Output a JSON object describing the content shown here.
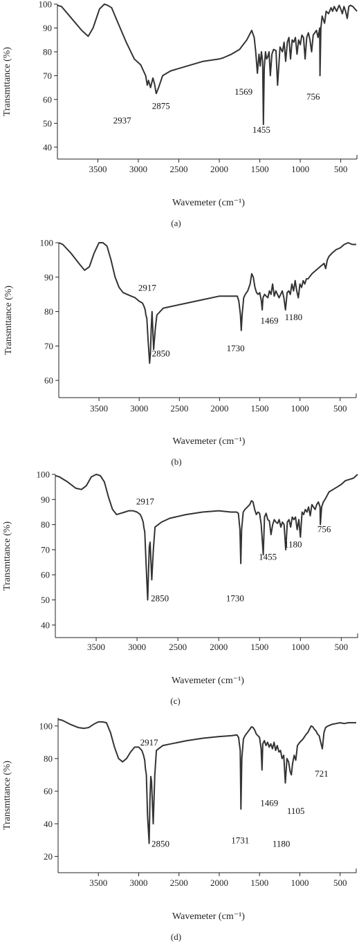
{
  "chart_data": [
    {
      "type": "line",
      "panel_label": "(a)",
      "xlabel": "Wavemeter (cm⁻¹)",
      "ylabel": "Transmttance (%)",
      "xlim": [
        4000,
        300
      ],
      "ylim": [
        35,
        100
      ],
      "xticks": [
        3500,
        3000,
        2500,
        2000,
        1500,
        1000,
        500
      ],
      "yticks": [
        40,
        50,
        60,
        70,
        80,
        90,
        100
      ],
      "grid": false,
      "annotations": [
        {
          "text": "2937",
          "x": 3200,
          "y": 50
        },
        {
          "text": "2875",
          "x": 2720,
          "y": 56
        },
        {
          "text": "1569",
          "x": 1700,
          "y": 62
        },
        {
          "text": "1455",
          "x": 1480,
          "y": 46
        },
        {
          "text": "756",
          "x": 840,
          "y": 60
        }
      ],
      "series": [
        {
          "x": [
            4000,
            3950,
            3850,
            3700,
            3620,
            3560,
            3480,
            3420,
            3380,
            3330,
            3250,
            3150,
            3050,
            2970,
            2937,
            2910,
            2890,
            2875,
            2850,
            2820,
            2800,
            2780,
            2750,
            2700,
            2600,
            2400,
            2200,
            2000,
            1950,
            1850,
            1750,
            1660,
            1600,
            1569,
            1550,
            1530,
            1510,
            1495,
            1480,
            1465,
            1455,
            1445,
            1430,
            1415,
            1400,
            1385,
            1370,
            1350,
            1330,
            1300,
            1280,
            1250,
            1220,
            1200,
            1180,
            1160,
            1140,
            1120,
            1100,
            1080,
            1060,
            1040,
            1020,
            1000,
            980,
            960,
            940,
            920,
            900,
            880,
            860,
            840,
            820,
            800,
            780,
            760,
            756,
            745,
            730,
            700,
            680,
            650,
            620,
            600,
            580,
            550,
            520,
            500,
            480,
            460,
            440,
            420,
            400,
            380,
            350,
            300
          ],
          "y": [
            99.5,
            99,
            95,
            89,
            86.5,
            90,
            98,
            100,
            99.5,
            98.5,
            92,
            84,
            77,
            74.5,
            72,
            70,
            66,
            68,
            65,
            69,
            66.5,
            62.5,
            65,
            70,
            72,
            74,
            76,
            77,
            77.5,
            79,
            81,
            85,
            89,
            86,
            80,
            71,
            79,
            74,
            80,
            76,
            49.5,
            73,
            80,
            77,
            78,
            80,
            70,
            79,
            81,
            80.5,
            66,
            82,
            80,
            84,
            76,
            84,
            86,
            77,
            85,
            84,
            86,
            79,
            85,
            83,
            87,
            86,
            77,
            86,
            88,
            85,
            80,
            87,
            88,
            89,
            86,
            90,
            70,
            90,
            95,
            92,
            97,
            96,
            98.5,
            97,
            99,
            97,
            99.5,
            98,
            96,
            99,
            97,
            94,
            99,
            99.5,
            99,
            97
          ]
        }
      ]
    },
    {
      "type": "line",
      "panel_label": "(b)",
      "xlabel": "Wavemeter (cm⁻¹)",
      "ylabel": "Transmttance (%)",
      "xlim": [
        4000,
        300
      ],
      "ylim": [
        55,
        100
      ],
      "xticks": [
        3500,
        3000,
        2500,
        2000,
        1500,
        1000,
        500
      ],
      "yticks": [
        60,
        70,
        80,
        90,
        100
      ],
      "grid": false,
      "annotations": [
        {
          "text": "2917",
          "x": 2900,
          "y": 86
        },
        {
          "text": "2850",
          "x": 2730,
          "y": 67
        },
        {
          "text": "1730",
          "x": 1800,
          "y": 68.5
        },
        {
          "text": "1469",
          "x": 1380,
          "y": 76.5
        },
        {
          "text": "1180",
          "x": 1080,
          "y": 77.5
        }
      ],
      "series": [
        {
          "x": [
            4000,
            3950,
            3850,
            3750,
            3680,
            3620,
            3560,
            3500,
            3450,
            3400,
            3350,
            3300,
            3250,
            3200,
            3150,
            3100,
            3050,
            3000,
            2960,
            2940,
            2925,
            2917,
            2905,
            2890,
            2870,
            2860,
            2850,
            2840,
            2820,
            2800,
            2780,
            2700,
            2600,
            2400,
            2200,
            2000,
            1850,
            1780,
            1760,
            1740,
            1730,
            1720,
            1700,
            1680,
            1650,
            1620,
            1600,
            1580,
            1560,
            1540,
            1520,
            1500,
            1480,
            1469,
            1460,
            1440,
            1420,
            1400,
            1380,
            1360,
            1340,
            1320,
            1300,
            1280,
            1260,
            1240,
            1220,
            1200,
            1180,
            1160,
            1140,
            1120,
            1100,
            1080,
            1060,
            1040,
            1020,
            1000,
            980,
            960,
            940,
            920,
            900,
            850,
            800,
            750,
            700,
            680,
            660,
            640,
            620,
            600,
            550,
            500,
            450,
            400,
            350,
            300
          ],
          "y": [
            100,
            99.5,
            97,
            94,
            92,
            93,
            97,
            100,
            100.5,
            99,
            95,
            90,
            87,
            85.5,
            85,
            84.5,
            84,
            83,
            82.5,
            81.5,
            80.5,
            79,
            78,
            72,
            65,
            68,
            75,
            80,
            69,
            75,
            79,
            81,
            81.5,
            82.5,
            83.5,
            84.5,
            84.5,
            84.5,
            83,
            79,
            74.5,
            79,
            84,
            85,
            86,
            88,
            91,
            90,
            87,
            85.5,
            85,
            85.5,
            83,
            80.5,
            84,
            85,
            84.5,
            84,
            86,
            85,
            88,
            84.5,
            86,
            85,
            84,
            85,
            86,
            84,
            80.5,
            85.5,
            86,
            85,
            88,
            86,
            89,
            86,
            84,
            88,
            87,
            89,
            88,
            89.5,
            89.5,
            91,
            92,
            93,
            94,
            92.5,
            95,
            96,
            96.5,
            97,
            98,
            98.5,
            99.5,
            100,
            99.5,
            99.5
          ]
        }
      ]
    },
    {
      "type": "line",
      "panel_label": "(c)",
      "xlabel": "Wavemeter (cm⁻¹)",
      "ylabel": "Transmttance (%)",
      "xlim": [
        4000,
        300
      ],
      "ylim": [
        35,
        100
      ],
      "xticks": [
        3500,
        3000,
        2500,
        2000,
        1500,
        1000,
        500
      ],
      "yticks": [
        40,
        50,
        60,
        70,
        80,
        90,
        100
      ],
      "grid": false,
      "annotations": [
        {
          "text": "2917",
          "x": 2900,
          "y": 88
        },
        {
          "text": "2850",
          "x": 2720,
          "y": 49.5
        },
        {
          "text": "1730",
          "x": 1800,
          "y": 49.5
        },
        {
          "text": "1455",
          "x": 1400,
          "y": 66
        },
        {
          "text": "1180",
          "x": 1090,
          "y": 71
        },
        {
          "text": "756",
          "x": 710,
          "y": 77
        }
      ],
      "series": [
        {
          "x": [
            4000,
            3950,
            3850,
            3750,
            3680,
            3620,
            3560,
            3500,
            3450,
            3400,
            3350,
            3300,
            3250,
            3200,
            3150,
            3100,
            3050,
            3000,
            2960,
            2940,
            2925,
            2917,
            2905,
            2890,
            2870,
            2860,
            2850,
            2840,
            2820,
            2800,
            2780,
            2700,
            2600,
            2400,
            2200,
            2000,
            1850,
            1780,
            1760,
            1740,
            1730,
            1720,
            1700,
            1680,
            1650,
            1620,
            1600,
            1580,
            1560,
            1540,
            1520,
            1500,
            1480,
            1455,
            1440,
            1420,
            1400,
            1380,
            1360,
            1340,
            1320,
            1300,
            1280,
            1260,
            1240,
            1220,
            1200,
            1180,
            1160,
            1140,
            1120,
            1100,
            1080,
            1060,
            1040,
            1020,
            1000,
            980,
            960,
            940,
            920,
            900,
            880,
            860,
            840,
            820,
            800,
            780,
            760,
            756,
            740,
            720,
            700,
            650,
            600,
            550,
            500,
            450,
            400,
            350,
            300
          ],
          "y": [
            99.5,
            99,
            97,
            94.5,
            94,
            95.5,
            99,
            100,
            99.5,
            97,
            91,
            86,
            84,
            84.5,
            85,
            85.5,
            85.5,
            85,
            84,
            82.5,
            81,
            79,
            77,
            65,
            50,
            60,
            71,
            73,
            58,
            70,
            79,
            81,
            82.5,
            84,
            85,
            85.5,
            85,
            85,
            84.5,
            78,
            64.5,
            78,
            85,
            86,
            87,
            88,
            89.5,
            89,
            86,
            84,
            85,
            84.5,
            80,
            68,
            83,
            84.5,
            82,
            81.5,
            76,
            80,
            82,
            81,
            80.5,
            82,
            79,
            81,
            80,
            70,
            81,
            82,
            79,
            83,
            82,
            83,
            78,
            82,
            75,
            85,
            84,
            86,
            85,
            87,
            83.5,
            88,
            87,
            86,
            88,
            89,
            87,
            80,
            87,
            89,
            90,
            93,
            94,
            95,
            96,
            97.5,
            98,
            98.5,
            100
          ]
        }
      ]
    },
    {
      "type": "line",
      "panel_label": "(d)",
      "xlabel": "Wavemeter (cm⁻¹)",
      "ylabel": "Transmttance (%)",
      "xlim": [
        4000,
        300
      ],
      "ylim": [
        10,
        105
      ],
      "xticks": [
        3500,
        3000,
        2500,
        2000,
        1500,
        1000,
        500
      ],
      "yticks": [
        20,
        40,
        60,
        80,
        100
      ],
      "grid": false,
      "annotations": [
        {
          "text": "2917",
          "x": 2870,
          "y": 88
        },
        {
          "text": "2850",
          "x": 2730,
          "y": 26
        },
        {
          "text": "1731",
          "x": 1740,
          "y": 28
        },
        {
          "text": "1180",
          "x": 1230,
          "y": 26
        },
        {
          "text": "1469",
          "x": 1380,
          "y": 51
        },
        {
          "text": "1105",
          "x": 1050,
          "y": 46
        },
        {
          "text": "721",
          "x": 730,
          "y": 69
        }
      ],
      "series": [
        {
          "x": [
            4000,
            3950,
            3850,
            3750,
            3680,
            3620,
            3560,
            3500,
            3450,
            3400,
            3350,
            3300,
            3250,
            3200,
            3150,
            3100,
            3050,
            3000,
            2960,
            2940,
            2925,
            2917,
            2905,
            2890,
            2870,
            2860,
            2850,
            2840,
            2820,
            2800,
            2780,
            2700,
            2600,
            2400,
            2200,
            2000,
            1850,
            1780,
            1760,
            1740,
            1731,
            1720,
            1700,
            1680,
            1650,
            1620,
            1600,
            1580,
            1560,
            1540,
            1520,
            1500,
            1480,
            1469,
            1460,
            1440,
            1420,
            1400,
            1380,
            1360,
            1340,
            1320,
            1300,
            1280,
            1260,
            1240,
            1220,
            1200,
            1180,
            1160,
            1140,
            1120,
            1105,
            1090,
            1070,
            1050,
            1030,
            1000,
            980,
            960,
            940,
            920,
            900,
            880,
            860,
            840,
            820,
            800,
            780,
            760,
            740,
            721,
            700,
            680,
            650,
            600,
            550,
            500,
            450,
            400,
            350,
            300
          ],
          "y": [
            104,
            103.5,
            101,
            99,
            98.5,
            99,
            101,
            102.5,
            102.5,
            102,
            96,
            87,
            80,
            78,
            80,
            84,
            87,
            87,
            85,
            82,
            79,
            74,
            70,
            45,
            28,
            55,
            69,
            66,
            40,
            70,
            85,
            88,
            89,
            91,
            92.5,
            93.5,
            94,
            94.5,
            93,
            85,
            49,
            80,
            92,
            94,
            96,
            98,
            99.5,
            99,
            97.5,
            95,
            94,
            93,
            86,
            73,
            89,
            91,
            88,
            90,
            87,
            89,
            86,
            90,
            85,
            88,
            84,
            85,
            80,
            82,
            65,
            80,
            78,
            72,
            70,
            77,
            82,
            79,
            88,
            90,
            91,
            92,
            93.5,
            95,
            96,
            98,
            100,
            99.5,
            98,
            97,
            95,
            94,
            90,
            86,
            96,
            99,
            100,
            101,
            101.5,
            102,
            101.5,
            102,
            102,
            102
          ]
        }
      ]
    }
  ]
}
